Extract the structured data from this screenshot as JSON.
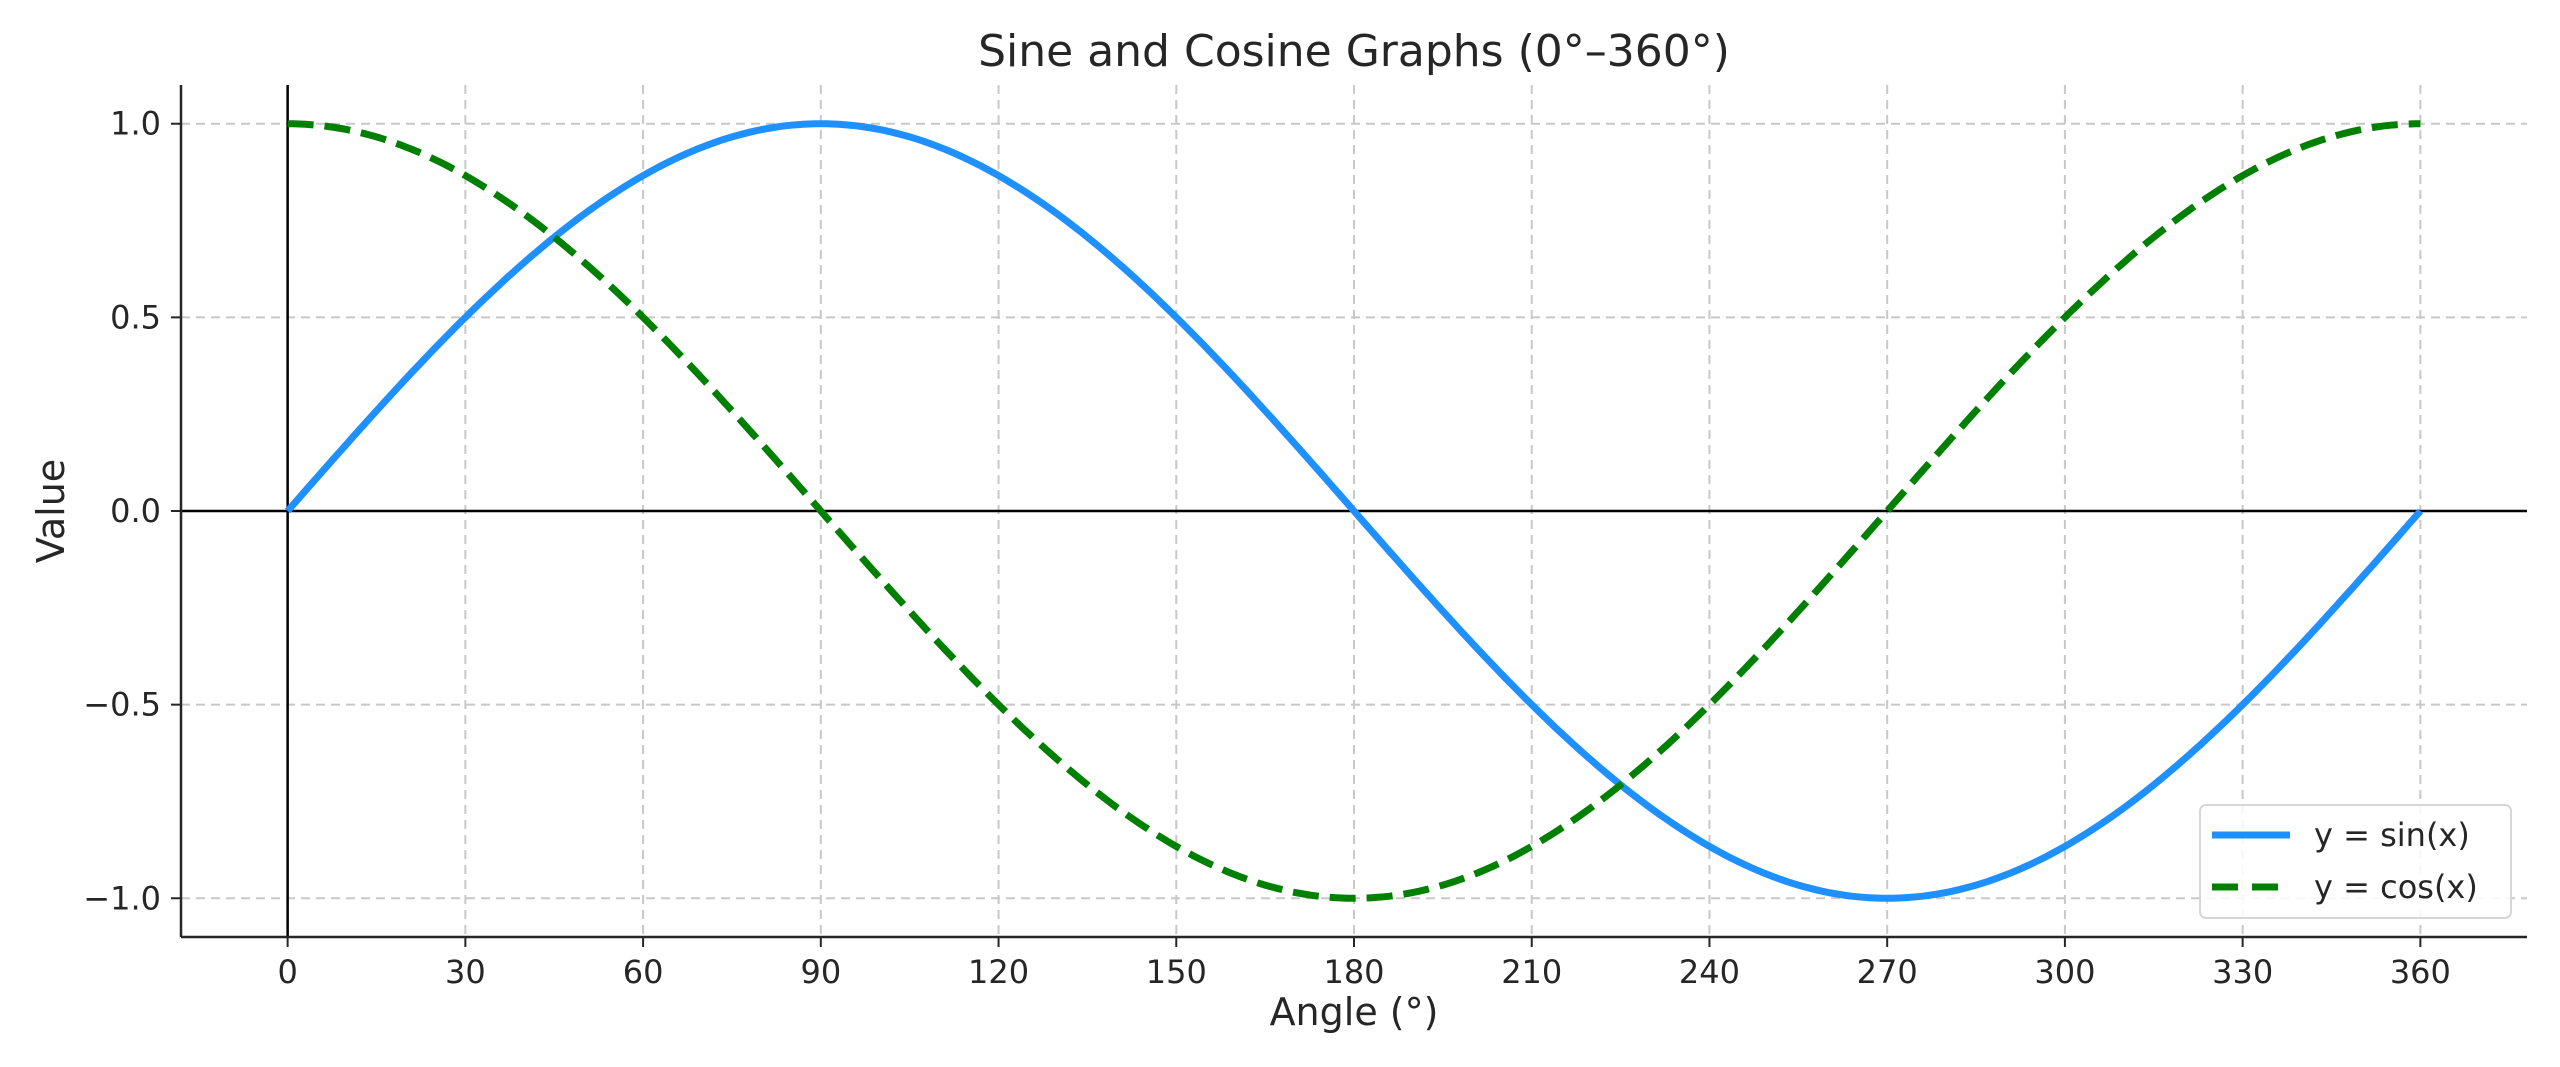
{
  "chart_data": {
    "type": "line",
    "title": "Sine and Cosine Graphs (0°–360°)",
    "xlabel": "Angle (°)",
    "ylabel": "Value",
    "xlim": [
      -18,
      378
    ],
    "ylim": [
      -1.1,
      1.1
    ],
    "xticks": [
      0,
      30,
      60,
      90,
      120,
      150,
      180,
      210,
      240,
      270,
      300,
      330,
      360
    ],
    "xtick_labels": [
      "0",
      "30",
      "60",
      "90",
      "120",
      "150",
      "180",
      "210",
      "240",
      "270",
      "300",
      "330",
      "360"
    ],
    "yticks": [
      -1.0,
      -0.5,
      0.0,
      0.5,
      1.0
    ],
    "ytick_labels": [
      "−1.0",
      "−0.5",
      "0.0",
      "0.5",
      "1.0"
    ],
    "grid": true,
    "grid_style": "dashed",
    "reference_lines": {
      "horizontal_y": 0,
      "vertical_x": 0
    },
    "legend_position": "lower-right",
    "series": [
      {
        "name": "y = sin(x)",
        "function": "sin",
        "x_range": [
          0,
          360
        ],
        "color": "#1e90ff",
        "style": "solid",
        "key_points": [
          [
            0,
            0
          ],
          [
            90,
            1
          ],
          [
            180,
            0
          ],
          [
            270,
            -1
          ],
          [
            360,
            0
          ]
        ]
      },
      {
        "name": "y = cos(x)",
        "function": "cos",
        "x_range": [
          0,
          360
        ],
        "color": "#008000",
        "style": "dashed",
        "key_points": [
          [
            0,
            1
          ],
          [
            90,
            0
          ],
          [
            180,
            -1
          ],
          [
            270,
            0
          ],
          [
            360,
            1
          ]
        ]
      }
    ]
  }
}
